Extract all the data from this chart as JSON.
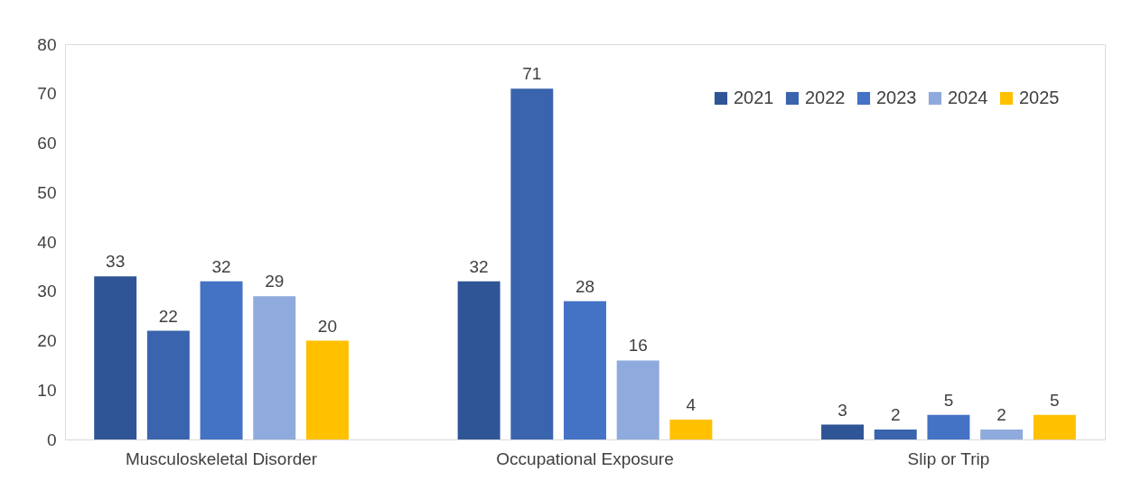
{
  "chart_data": {
    "type": "bar",
    "categories": [
      "Musculoskeletal Disorder",
      "Occupational Exposure",
      "Slip or Trip"
    ],
    "series": [
      {
        "name": "2021",
        "color": "#2f5597",
        "values": [
          33,
          32,
          3
        ]
      },
      {
        "name": "2022",
        "color": "#3a64ad",
        "values": [
          22,
          71,
          2
        ]
      },
      {
        "name": "2023",
        "color": "#4472c4",
        "values": [
          32,
          28,
          5
        ]
      },
      {
        "name": "2024",
        "color": "#8faadc",
        "values": [
          29,
          16,
          2
        ]
      },
      {
        "name": "2025",
        "color": "#ffc000",
        "values": [
          20,
          4,
          5
        ]
      }
    ],
    "ylim": [
      0,
      80
    ],
    "yticks": [
      0,
      10,
      20,
      30,
      40,
      50,
      60,
      70,
      80
    ],
    "grid": false,
    "legend": "top right",
    "data_labels": true
  }
}
